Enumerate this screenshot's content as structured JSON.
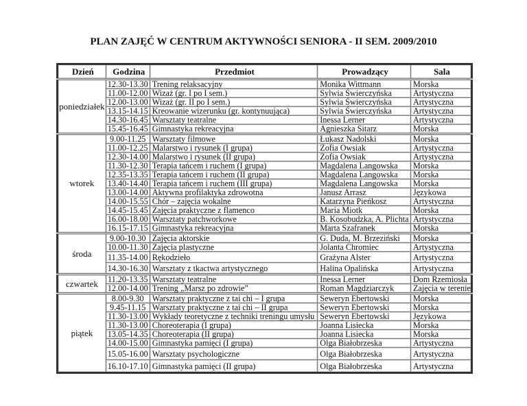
{
  "title": "PLAN ZAJĘĆ W CENTRUM AKTYWNOŚCI SENIORA - II SEM. 2009/2010",
  "headers": {
    "day": "Dzień",
    "time": "Godzina",
    "subject": "Przedmiot",
    "teacher": "Prowadzący",
    "room": "Sala"
  },
  "days": [
    {
      "day": "poniedziałek",
      "rows": [
        {
          "time": "12.30-13.30",
          "subject": "Trening relaksacyjny",
          "teacher": "Monika Wittmann",
          "room": "Morska"
        },
        {
          "time": "11.00-12.00",
          "subject": "Wizaż (gr. I po I sem.)",
          "teacher": "Sylwia Świerczyńska",
          "room": "Artystyczna"
        },
        {
          "time": "12.00-13.00",
          "subject": "Wizaż (gr. II po I sem.)",
          "teacher": "Sylwia Świerczyńska",
          "room": "Artystyczna"
        },
        {
          "time": "13.15-14.15",
          "subject": "Kreowanie wizerunku (gr. kontynuująca)",
          "teacher": "Sylwia Świerczyńska",
          "room": "Artystyczna"
        },
        {
          "time": "14.30-16.45",
          "subject": "Warsztaty teatralne",
          "teacher": "Inessa Lerner",
          "room": "Artystyczna"
        },
        {
          "time": "15.45-16.45",
          "subject": "Gimnastyka rekreacyjna",
          "teacher": "Agnieszka Sitarz",
          "room": "Morska"
        }
      ]
    },
    {
      "day": "wtorek",
      "rows": [
        {
          "time": "9.00-11.25",
          "subject": "Warsztaty filmowe",
          "teacher": "Łukasz Nadolski",
          "room": "Morska"
        },
        {
          "time": "11.00-12.25",
          "subject": "Malarstwo i rysunek (I grupa)",
          "teacher": "Zofia Owsiak",
          "room": "Artystyczna"
        },
        {
          "time": "12.30-14.00",
          "subject": "Malarstwo i rysunek (II grupa)",
          "teacher": "Zofia Owsiak",
          "room": "Artystyczna"
        },
        {
          "time": "11.30-12.30",
          "subject": "Terapia tańcem i ruchem (I grupa)",
          "teacher": "Magdalena Langowska",
          "room": "Morska"
        },
        {
          "time": "12.35-13.35",
          "subject": "Terapia tańcem i ruchem (II grupa)",
          "teacher": "Magdalena Langowska",
          "room": "Morska"
        },
        {
          "time": "13.40-14.40",
          "subject": "Terapia tańcem i ruchem (III grupa)",
          "teacher": "Magdalena Langowska",
          "room": "Morska"
        },
        {
          "time": "13.00-14.00",
          "subject": "Aktywna profilaktyka zdrowotna",
          "teacher": "Janusz Arrasz",
          "room": "Językowa"
        },
        {
          "time": "14.00-15.55",
          "subject": "Chór – zajęcia wokalne",
          "teacher": "Katarzyna Pieńkosz",
          "room": "Artystyczna"
        },
        {
          "time": "14.45-15.45",
          "subject": "Zajęcia praktyczne z flamenco",
          "teacher": "Maria Miotk",
          "room": "Morska"
        },
        {
          "time": "16.00-18.00",
          "subject": "Warsztaty patchworkowe",
          "teacher": "B. Kosobudzka, A.  Plichta",
          "room": "Artystyczna"
        },
        {
          "time": "16.15-17.15",
          "subject": "Gimnastyka rekreacyjna",
          "teacher": "Marta Szafranek",
          "room": "Morska"
        }
      ]
    },
    {
      "day": "środa",
      "rows": [
        {
          "time": "9.00-10.30",
          "subject": "Zajęcia aktorskie",
          "teacher": "G. Duda, M. Brzeziński",
          "room": "Morska"
        },
        {
          "time": "10.00-11.30",
          "subject": "Zajęcia plastyczne",
          "teacher": "Jolanta Chromiec",
          "room": "Artystyczna"
        },
        {
          "time": "11.35-14.00",
          "subject": "Rękodzieło",
          "teacher": "Grażyna Alster",
          "room": "Artystyczna"
        },
        {
          "time": "14.30-16.30",
          "subject": "Warsztaty z tkactwa artystycznego",
          "teacher": "Halina Opalińska",
          "room": "Artystyczna"
        }
      ]
    },
    {
      "day": "czwartek",
      "rows": [
        {
          "time": "11.20-13.35",
          "subject": "Warsztaty teatralne",
          "teacher": "Inessa Lerner",
          "room": "Dom Rzemiosła"
        },
        {
          "time": "12.00-14.00",
          "subject": "Trening „Marsz po zdrowie”",
          "teacher": "Roman Magdziarczyk",
          "room": "Zajęcia w terenie"
        }
      ]
    },
    {
      "day": "piątek",
      "rows": [
        {
          "time": "8.00-9.30",
          "subject": "Warsztaty praktyczne z tai chi – I grupa",
          "teacher": "Seweryn Ebertowski",
          "room": "Morska"
        },
        {
          "time": "9.45-11.15",
          "subject": "Warsztaty praktyczne z tai chi – II grupa",
          "teacher": "Seweryn Ebertowski",
          "room": "Morska"
        },
        {
          "time": "11.30-13.00",
          "subject": "Wykłady teoretyczne z techniki treningu umysłu",
          "teacher": "Seweryn Ebertowski",
          "room": "Językowa"
        },
        {
          "time": "11.30-13.00",
          "subject": "Choreoterapia (I grupa)",
          "teacher": "Joanna Lisiecka",
          "room": "Morska"
        },
        {
          "time": "13.05-14.35",
          "subject": "Choreoterapia (II grupa)",
          "teacher": "Joanna Lisiecka",
          "room": "Morska"
        },
        {
          "time": "14.00-15.00",
          "subject": "Gimnastyka pamięci (I grupa)",
          "teacher": "Olga Białobrzeska",
          "room": "Artystyczna"
        },
        {
          "time": "15.05-16.00",
          "subject": "Warsztaty psychologiczne",
          "teacher": "Olga Białobrzeska",
          "room": "Artystyczna"
        },
        {
          "time": "16.10-17.10",
          "subject": "Gimnastyka pamięci (II grupa)",
          "teacher": "Olga Białobrzeska",
          "room": "Artystyczna"
        }
      ]
    }
  ]
}
